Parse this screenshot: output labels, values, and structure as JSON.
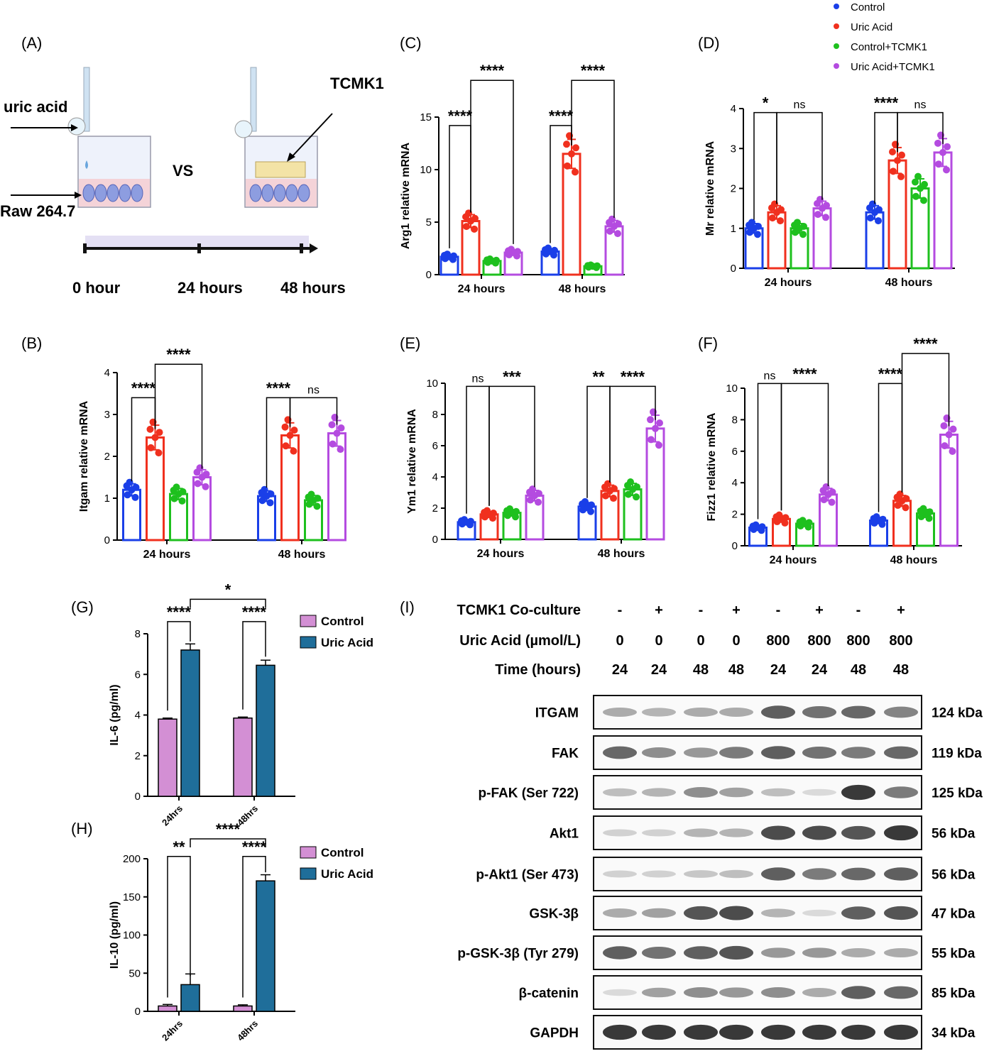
{
  "series_colors": {
    "control": "#1a3fe8",
    "uric": "#f0301e",
    "ctrl_tcmk": "#1ec01e",
    "uric_tcmk": "#b44be0",
    "elisa_control": "#d38fd4",
    "elisa_uric": "#1f6e9a"
  },
  "legend_top": [
    "Control",
    "Uric Acid",
    "Control+TCMK1",
    "Uric Acid+TCMK1"
  ],
  "panel_labels": {
    "A": "(A)",
    "B": "(B)",
    "C": "(C)",
    "D": "(D)",
    "E": "(E)",
    "F": "(F)",
    "G": "(G)",
    "H": "(H)",
    "I": "(I)"
  },
  "schematic": {
    "uric_acid": "uric acid",
    "raw": "Raw 264.7",
    "vs": "VS",
    "tcmk1": "TCMK1",
    "timeline": [
      "0 hour",
      "24 hours",
      "48 hours"
    ]
  },
  "groups": [
    "24 hours",
    "48 hours"
  ],
  "chart_data": [
    {
      "id": "C",
      "type": "bar",
      "ylabel": "Arg1 relative mRNA",
      "ylim": [
        0,
        15
      ],
      "yticks": [
        0,
        5,
        10,
        15
      ],
      "categories": [
        "24 hours",
        "48 hours"
      ],
      "series": [
        {
          "name": "Control",
          "values": [
            1.7,
            2.2
          ]
        },
        {
          "name": "Uric Acid",
          "values": [
            5.1,
            11.5
          ]
        },
        {
          "name": "Control+TCMK1",
          "values": [
            1.3,
            0.8
          ]
        },
        {
          "name": "Uric Acid+TCMK1",
          "values": [
            2.1,
            4.6
          ]
        }
      ],
      "annotations": [
        {
          "text": "****",
          "group": 0,
          "a": 0,
          "b": 1,
          "level": 14.2
        },
        {
          "text": "****",
          "group": 0,
          "a": 1,
          "b": 3,
          "level": 18.5
        },
        {
          "text": "****",
          "group": 1,
          "a": 0,
          "b": 1,
          "level": 14.2
        },
        {
          "text": "****",
          "group": 1,
          "a": 1,
          "b": 3,
          "level": 18.5
        }
      ]
    },
    {
      "id": "D",
      "type": "bar",
      "ylabel": "Mr relative mRNA",
      "ylim": [
        0,
        4
      ],
      "yticks": [
        0,
        1,
        2,
        3,
        4
      ],
      "categories": [
        "24 hours",
        "48 hours"
      ],
      "series": [
        {
          "name": "Control",
          "values": [
            1.0,
            1.4
          ]
        },
        {
          "name": "Uric Acid",
          "values": [
            1.4,
            2.7
          ]
        },
        {
          "name": "Control+TCMK1",
          "values": [
            1.0,
            2.0
          ]
        },
        {
          "name": "Uric Acid+TCMK1",
          "values": [
            1.5,
            2.9
          ]
        }
      ],
      "annotations": [
        {
          "text": "*",
          "group": 0,
          "a": 0,
          "b": 1,
          "level": 3.9
        },
        {
          "text": "ns",
          "group": 0,
          "a": 1,
          "b": 3,
          "level": 3.9
        },
        {
          "text": "****",
          "group": 1,
          "a": 0,
          "b": 1,
          "level": 3.9
        },
        {
          "text": "ns",
          "group": 1,
          "a": 1,
          "b": 3,
          "level": 3.9
        }
      ]
    },
    {
      "id": "B",
      "type": "bar",
      "ylabel": "Itgam relative mRNA",
      "ylim": [
        0,
        4
      ],
      "yticks": [
        0,
        1,
        2,
        3,
        4
      ],
      "categories": [
        "24 hours",
        "48 hours"
      ],
      "series": [
        {
          "name": "Control",
          "values": [
            1.2,
            1.05
          ]
        },
        {
          "name": "Uric Acid",
          "values": [
            2.45,
            2.5
          ]
        },
        {
          "name": "Control+TCMK1",
          "values": [
            1.1,
            0.95
          ]
        },
        {
          "name": "Uric Acid+TCMK1",
          "values": [
            1.5,
            2.55
          ]
        }
      ],
      "annotations": [
        {
          "text": "****",
          "group": 0,
          "a": 0,
          "b": 1,
          "level": 3.4
        },
        {
          "text": "****",
          "group": 0,
          "a": 1,
          "b": 3,
          "level": 4.2
        },
        {
          "text": "****",
          "group": 1,
          "a": 0,
          "b": 1,
          "level": 3.4
        },
        {
          "text": "ns",
          "group": 1,
          "a": 1,
          "b": 3,
          "level": 3.4
        }
      ]
    },
    {
      "id": "E",
      "type": "bar",
      "ylabel": "Ym1 relative mRNA",
      "ylim": [
        0,
        10
      ],
      "yticks": [
        0,
        2,
        4,
        6,
        8,
        10
      ],
      "categories": [
        "24 hours",
        "48 hours"
      ],
      "series": [
        {
          "name": "Control",
          "values": [
            1.1,
            2.1
          ]
        },
        {
          "name": "Uric Acid",
          "values": [
            1.6,
            3.1
          ]
        },
        {
          "name": "Control+TCMK1",
          "values": [
            1.7,
            3.2
          ]
        },
        {
          "name": "Uric Acid+TCMK1",
          "values": [
            2.8,
            7.1
          ]
        }
      ],
      "annotations": [
        {
          "text": "ns",
          "group": 0,
          "a": 0,
          "b": 1,
          "level": 9.8
        },
        {
          "text": "***",
          "group": 0,
          "a": 1,
          "b": 3,
          "level": 9.8
        },
        {
          "text": "**",
          "group": 1,
          "a": 0,
          "b": 1,
          "level": 9.8
        },
        {
          "text": "****",
          "group": 1,
          "a": 1,
          "b": 3,
          "level": 9.8
        }
      ]
    },
    {
      "id": "F",
      "type": "bar",
      "ylabel": "Fizz1 relative mRNA",
      "ylim": [
        0,
        10
      ],
      "yticks": [
        0,
        2,
        4,
        6,
        8,
        10
      ],
      "categories": [
        "24 hours",
        "48 hours"
      ],
      "series": [
        {
          "name": "Control",
          "values": [
            1.15,
            1.6
          ]
        },
        {
          "name": "Uric Acid",
          "values": [
            1.7,
            2.85
          ]
        },
        {
          "name": "Control+TCMK1",
          "values": [
            1.4,
            2.05
          ]
        },
        {
          "name": "Uric Acid+TCMK1",
          "values": [
            3.25,
            7.05
          ]
        }
      ],
      "annotations": [
        {
          "text": "ns",
          "group": 0,
          "a": 0,
          "b": 1,
          "level": 10.3
        },
        {
          "text": "****",
          "group": 0,
          "a": 1,
          "b": 3,
          "level": 10.3
        },
        {
          "text": "****",
          "group": 1,
          "a": 0,
          "b": 1,
          "level": 10.3
        },
        {
          "text": "****",
          "group": 1,
          "a": 1,
          "b": 3,
          "level": 12.2
        }
      ]
    },
    {
      "id": "G",
      "type": "bar",
      "ylabel": "IL-6 (pg/ml)",
      "ylim": [
        0,
        8
      ],
      "yticks": [
        0,
        2,
        4,
        6,
        8
      ],
      "categories": [
        "24hrs",
        "48hrs"
      ],
      "series": [
        {
          "name": "Control",
          "values": [
            3.8,
            3.85
          ],
          "err": [
            0.05,
            0.05
          ]
        },
        {
          "name": "Uric Acid",
          "values": [
            7.2,
            6.45
          ],
          "err": [
            0.3,
            0.25
          ]
        }
      ],
      "legend": [
        "Control",
        "Uric Acid"
      ],
      "annotations": [
        {
          "text": "****",
          "group": 0,
          "a": 0,
          "b": 1,
          "level": 8.6
        },
        {
          "text": "****",
          "group": 1,
          "a": 0,
          "b": 1,
          "level": 8.6
        },
        {
          "text": "*",
          "span": true,
          "level": 9.7
        }
      ]
    },
    {
      "id": "H",
      "type": "bar",
      "ylabel": "IL-10 (pg/ml)",
      "ylim": [
        0,
        200
      ],
      "yticks": [
        0,
        50,
        100,
        150,
        200
      ],
      "categories": [
        "24hrs",
        "48hrs"
      ],
      "series": [
        {
          "name": "Control",
          "values": [
            7,
            7
          ],
          "err": [
            2,
            1.5
          ]
        },
        {
          "name": "Uric Acid",
          "values": [
            35,
            171
          ],
          "err": [
            14,
            8
          ]
        }
      ],
      "legend": [
        "Control",
        "Uric Acid"
      ],
      "annotations": [
        {
          "text": "**",
          "group": 0,
          "a": 0,
          "b": 1,
          "level": 203
        },
        {
          "text": "****",
          "group": 1,
          "a": 0,
          "b": 1,
          "level": 203
        },
        {
          "text": "****",
          "span": true,
          "level": 226
        }
      ]
    }
  ],
  "western": {
    "header_rows": [
      {
        "label": "TCMK1 Co-culture",
        "values": [
          "-",
          "+",
          "-",
          "+",
          "-",
          "+",
          "-",
          "+"
        ]
      },
      {
        "label": "Uric Acid (µmol/L)",
        "values": [
          "0",
          "0",
          "0",
          "0",
          "800",
          "800",
          "800",
          "800"
        ]
      },
      {
        "label": "Time (hours)",
        "values": [
          "24",
          "24",
          "48",
          "48",
          "24",
          "24",
          "48",
          "48"
        ]
      }
    ],
    "blots": [
      {
        "protein": "ITGAM",
        "size": "124 kDa",
        "intensity": [
          0.35,
          0.3,
          0.35,
          0.35,
          0.75,
          0.65,
          0.7,
          0.55
        ]
      },
      {
        "protein": "FAK",
        "size": "119 kDa",
        "intensity": [
          0.7,
          0.5,
          0.45,
          0.6,
          0.75,
          0.65,
          0.6,
          0.7
        ]
      },
      {
        "protein": "p-FAK (Ser 722)",
        "size": "125 kDa",
        "intensity": [
          0.25,
          0.3,
          0.5,
          0.4,
          0.25,
          0.1,
          0.95,
          0.6
        ]
      },
      {
        "protein": "Akt1",
        "size": "56 kDa",
        "intensity": [
          0.15,
          0.15,
          0.3,
          0.3,
          0.85,
          0.85,
          0.8,
          0.95
        ]
      },
      {
        "protein": "p-Akt1 (Ser 473)",
        "size": "56 kDa",
        "intensity": [
          0.15,
          0.15,
          0.2,
          0.25,
          0.75,
          0.6,
          0.7,
          0.75
        ]
      },
      {
        "protein": "GSK-3β",
        "size": "47 kDa",
        "intensity": [
          0.35,
          0.4,
          0.8,
          0.85,
          0.3,
          0.1,
          0.75,
          0.8
        ]
      },
      {
        "protein": "p-GSK-3β (Tyr 279)",
        "size": "55 kDa",
        "intensity": [
          0.75,
          0.65,
          0.75,
          0.8,
          0.45,
          0.45,
          0.35,
          0.35
        ]
      },
      {
        "protein": "β-catenin",
        "size": "85 kDa",
        "intensity": [
          0.1,
          0.4,
          0.5,
          0.45,
          0.5,
          0.35,
          0.75,
          0.7
        ]
      },
      {
        "protein": "GAPDH",
        "size": "34 kDa",
        "intensity": [
          0.95,
          0.95,
          0.95,
          0.95,
          0.95,
          0.95,
          0.95,
          0.95
        ]
      }
    ]
  }
}
